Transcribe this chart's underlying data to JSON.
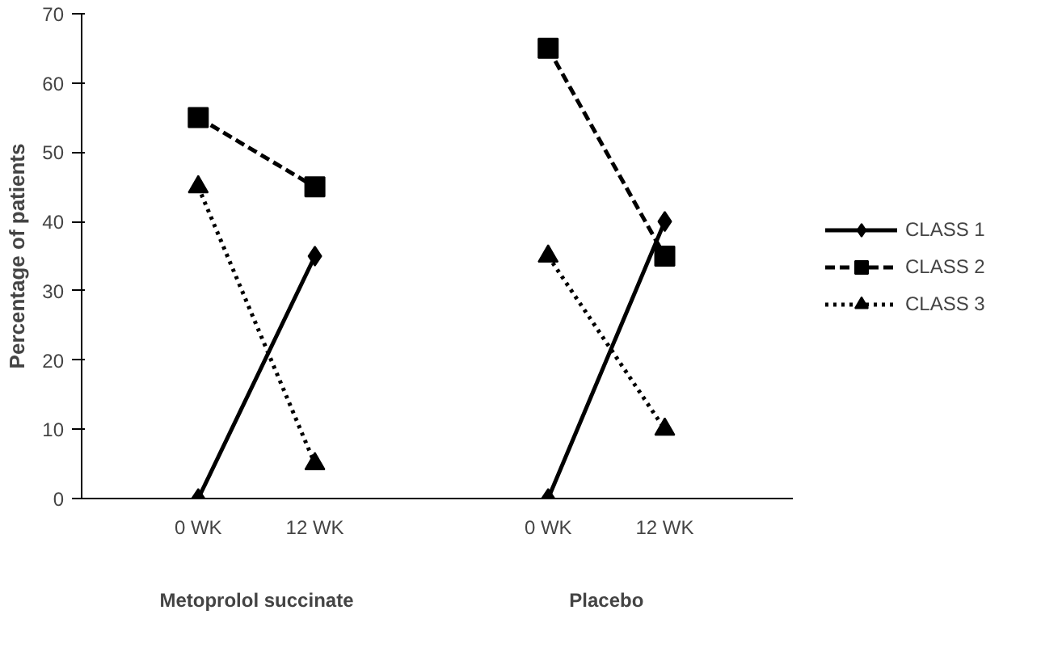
{
  "chart_data": {
    "type": "line",
    "ylabel": "Percentage of patients",
    "categories": [
      "0 WK",
      "12 WK",
      null,
      "0 WK",
      "12 WK"
    ],
    "annotations": [
      "Metoprolol succinate",
      "Placebo"
    ],
    "ylim": [
      0,
      70
    ],
    "yticks": [
      0,
      10,
      20,
      30,
      40,
      50,
      60,
      70
    ],
    "grid": false,
    "legend": "right",
    "series": [
      {
        "name": "CLASS 1",
        "color": "#000000",
        "values": [
          0,
          35,
          null,
          0,
          40
        ],
        "marker": "diamond",
        "line_style": "solid"
      },
      {
        "name": "CLASS 2",
        "color": "#000000",
        "values": [
          55,
          45,
          null,
          65,
          35
        ],
        "marker": "square",
        "line_style": "dashed"
      },
      {
        "name": "CLASS 3",
        "color": "#000000",
        "values": [
          45,
          5,
          null,
          35,
          10
        ],
        "marker": "triangle",
        "line_style": "dotted"
      }
    ]
  }
}
